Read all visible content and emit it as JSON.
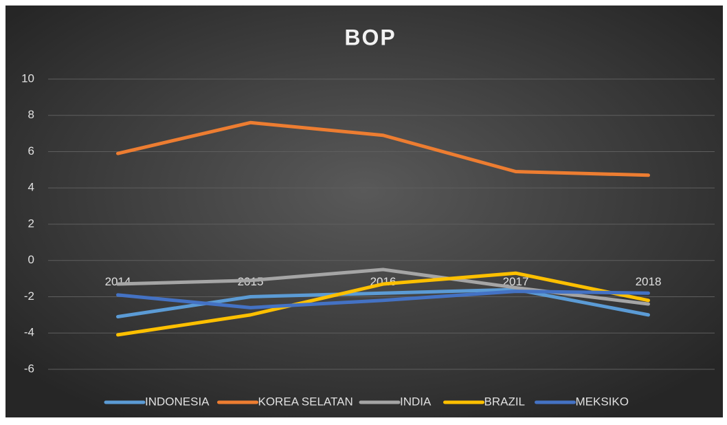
{
  "chart_data": {
    "type": "line",
    "title": "BOP",
    "categories": [
      "2014",
      "2015",
      "2016",
      "2017",
      "2018"
    ],
    "series": [
      {
        "name": "INDONESIA",
        "color": "#5b9bd5",
        "values": [
          -3.1,
          -2.0,
          -1.8,
          -1.6,
          -3.0
        ]
      },
      {
        "name": "KOREA SELATAN",
        "color": "#ed7d31",
        "values": [
          5.9,
          7.6,
          6.9,
          4.9,
          4.7
        ]
      },
      {
        "name": "INDIA",
        "color": "#a5a5a5",
        "values": [
          -1.3,
          -1.1,
          -0.5,
          -1.5,
          -2.4
        ]
      },
      {
        "name": "BRAZIL",
        "color": "#ffc000",
        "values": [
          -4.1,
          -3.0,
          -1.3,
          -0.7,
          -2.2
        ]
      },
      {
        "name": "MEKSIKO",
        "color": "#4472c4",
        "values": [
          -1.9,
          -2.6,
          -2.2,
          -1.7,
          -1.8
        ]
      }
    ],
    "ylim": [
      -6,
      10
    ],
    "yticks": [
      -6,
      -4,
      -2,
      0,
      2,
      4,
      6,
      8,
      10
    ],
    "grid": true,
    "legend": "bottom"
  }
}
